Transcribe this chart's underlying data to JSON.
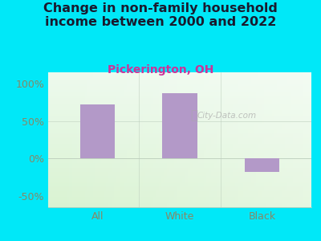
{
  "title": "Change in non-family household\nincome between 2000 and 2022",
  "subtitle": "Pickerington, OH",
  "categories": [
    "All",
    "White",
    "Black"
  ],
  "values": [
    72,
    87,
    -18
  ],
  "bar_color": "#b399c8",
  "title_fontsize": 11.5,
  "subtitle_fontsize": 10,
  "subtitle_color": "#cc3399",
  "title_color": "#1a1a2e",
  "tick_color": "#888866",
  "ylabel_ticks": [
    -50,
    0,
    50,
    100
  ],
  "ylim": [
    -65,
    115
  ],
  "bg_outer": "#00e8f8",
  "watermark": "City-Data.com",
  "bar_width": 0.42
}
